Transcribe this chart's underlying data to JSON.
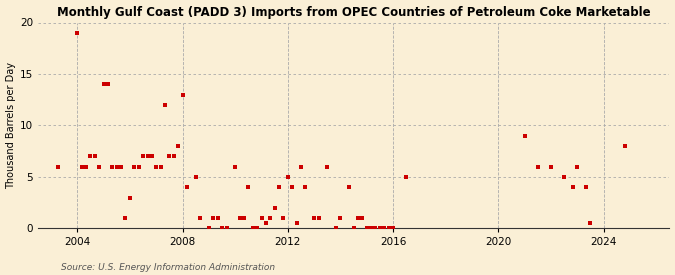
{
  "title": "Monthly Gulf Coast (PADD 3) Imports from OPEC Countries of Petroleum Coke Marketable",
  "ylabel": "Thousand Barrels per Day",
  "source": "Source: U.S. Energy Information Administration",
  "background_color": "#faefd6",
  "marker_color": "#cc0000",
  "marker_size": 12,
  "ylim": [
    0,
    20
  ],
  "yticks": [
    0,
    5,
    10,
    15,
    20
  ],
  "xlim": [
    2002.5,
    2026.5
  ],
  "xticks": [
    2004,
    2008,
    2012,
    2016,
    2020,
    2024
  ],
  "data_x": [
    2003.25,
    2004.0,
    2004.17,
    2004.33,
    2004.5,
    2004.67,
    2004.83,
    2005.0,
    2005.17,
    2005.33,
    2005.5,
    2005.67,
    2005.83,
    2006.0,
    2006.17,
    2006.33,
    2006.5,
    2006.67,
    2006.83,
    2007.0,
    2007.17,
    2007.33,
    2007.5,
    2007.67,
    2007.83,
    2008.0,
    2008.17,
    2008.5,
    2008.67,
    2009.0,
    2009.17,
    2009.33,
    2009.5,
    2009.67,
    2010.0,
    2010.17,
    2010.33,
    2010.5,
    2010.67,
    2010.83,
    2011.0,
    2011.17,
    2011.33,
    2011.5,
    2011.67,
    2011.83,
    2012.0,
    2012.17,
    2012.33,
    2012.5,
    2012.67,
    2013.0,
    2013.17,
    2013.5,
    2013.83,
    2014.0,
    2014.33,
    2014.5,
    2014.67,
    2014.83,
    2015.0,
    2015.17,
    2015.33,
    2015.5,
    2015.67,
    2015.83,
    2016.0,
    2016.5,
    2021.0,
    2021.5,
    2022.0,
    2022.5,
    2022.83,
    2023.0,
    2023.33,
    2023.5,
    2024.83
  ],
  "data_y": [
    6.0,
    19.0,
    6.0,
    6.0,
    7.0,
    7.0,
    6.0,
    14.0,
    14.0,
    6.0,
    6.0,
    6.0,
    1.0,
    3.0,
    6.0,
    6.0,
    7.0,
    7.0,
    7.0,
    6.0,
    6.0,
    12.0,
    7.0,
    7.0,
    8.0,
    13.0,
    4.0,
    5.0,
    1.0,
    0.0,
    1.0,
    1.0,
    0.0,
    0.0,
    6.0,
    1.0,
    1.0,
    4.0,
    0.0,
    0.0,
    1.0,
    0.5,
    1.0,
    2.0,
    4.0,
    1.0,
    5.0,
    4.0,
    0.5,
    6.0,
    4.0,
    1.0,
    1.0,
    6.0,
    0.0,
    1.0,
    4.0,
    0.0,
    1.0,
    1.0,
    0.0,
    0.0,
    0.0,
    0.0,
    0.0,
    0.0,
    0.0,
    5.0,
    9.0,
    6.0,
    6.0,
    5.0,
    4.0,
    6.0,
    4.0,
    0.5,
    8.0
  ]
}
